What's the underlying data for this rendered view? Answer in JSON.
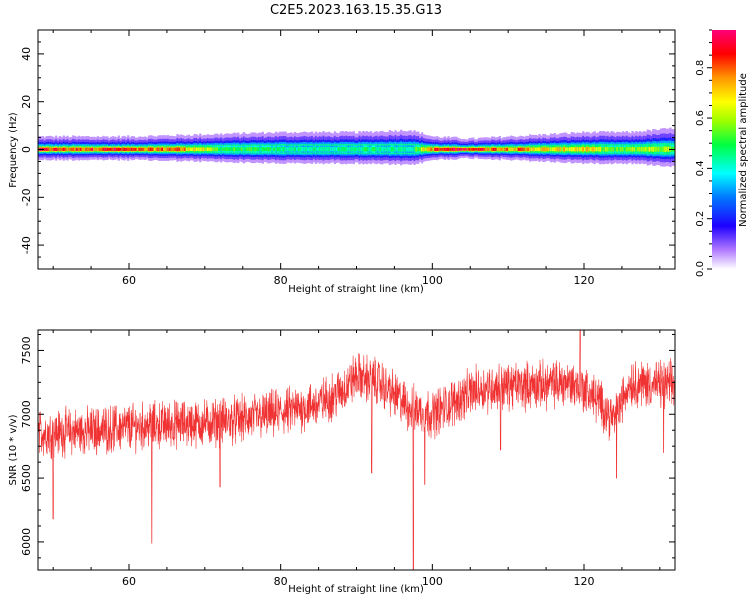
{
  "figure_title": "C2E5.2023.163.15.35.G13",
  "chart_data": [
    {
      "type": "heatmap",
      "title": "",
      "xlabel": "Height of straight line (km)",
      "ylabel": "Frequency (Hz)",
      "xlim": [
        48,
        132
      ],
      "ylim": [
        -50,
        50
      ],
      "xticks": [
        60,
        80,
        100,
        120
      ],
      "yticks": [
        -40,
        -20,
        0,
        20,
        40
      ],
      "colorbar": {
        "label": "Normalized spectral amplitude",
        "range": [
          0.0,
          0.95
        ],
        "ticks": [
          0.0,
          0.2,
          0.4,
          0.6,
          0.8
        ]
      },
      "band": {
        "center_frequency_hz": 0,
        "half_width_hz": [
          [
            48,
            3
          ],
          [
            60,
            3
          ],
          [
            70,
            3.5
          ],
          [
            80,
            4
          ],
          [
            90,
            4
          ],
          [
            97,
            4.5
          ],
          [
            100,
            3
          ],
          [
            105,
            2.5
          ],
          [
            110,
            3
          ],
          [
            120,
            4
          ],
          [
            126,
            4
          ],
          [
            132,
            5
          ]
        ],
        "peak_amplitude": [
          [
            48,
            0.9
          ],
          [
            52,
            0.85
          ],
          [
            58,
            0.9
          ],
          [
            62,
            0.8
          ],
          [
            66,
            0.85
          ],
          [
            72,
            0.55
          ],
          [
            78,
            0.5
          ],
          [
            85,
            0.45
          ],
          [
            92,
            0.5
          ],
          [
            97,
            0.45
          ],
          [
            100,
            0.85
          ],
          [
            104,
            0.95
          ],
          [
            108,
            0.85
          ],
          [
            112,
            0.8
          ],
          [
            116,
            0.7
          ],
          [
            120,
            0.75
          ],
          [
            124,
            0.55
          ],
          [
            128,
            0.65
          ],
          [
            132,
            0.6
          ]
        ]
      }
    },
    {
      "type": "line",
      "title": "",
      "xlabel": "Height of straight line (km)",
      "ylabel": "SNR (10 * v/v)",
      "xlim": [
        48,
        132
      ],
      "ylim": [
        5780,
        7660
      ],
      "xticks": [
        60,
        80,
        100,
        120
      ],
      "yticks": [
        6000,
        6500,
        7000,
        7500
      ],
      "color": "#f03232",
      "series": [
        {
          "baseline": [
            [
              48,
              6850
            ],
            [
              55,
              6870
            ],
            [
              60,
              6900
            ],
            [
              65,
              6920
            ],
            [
              70,
              6930
            ],
            [
              75,
              6960
            ],
            [
              80,
              7010
            ],
            [
              85,
              7080
            ],
            [
              88,
              7180
            ],
            [
              90,
              7300
            ],
            [
              93,
              7250
            ],
            [
              95,
              7150
            ],
            [
              97,
              7050
            ],
            [
              100,
              7000
            ],
            [
              103,
              7100
            ],
            [
              106,
              7200
            ],
            [
              110,
              7220
            ],
            [
              115,
              7230
            ],
            [
              118,
              7250
            ],
            [
              120,
              7200
            ],
            [
              122,
              7100
            ],
            [
              124,
              6950
            ],
            [
              126,
              7250
            ],
            [
              130,
              7230
            ],
            [
              132,
              7230
            ]
          ],
          "spikes": [
            [
              50,
              6180
            ],
            [
              63,
              5990
            ],
            [
              72,
              6430
            ],
            [
              92,
              6540
            ],
            [
              97.5,
              5780
            ],
            [
              99,
              6450
            ],
            [
              109,
              6720
            ],
            [
              119.5,
              7660
            ],
            [
              124.3,
              6500
            ],
            [
              130.5,
              6700
            ]
          ]
        }
      ]
    }
  ]
}
